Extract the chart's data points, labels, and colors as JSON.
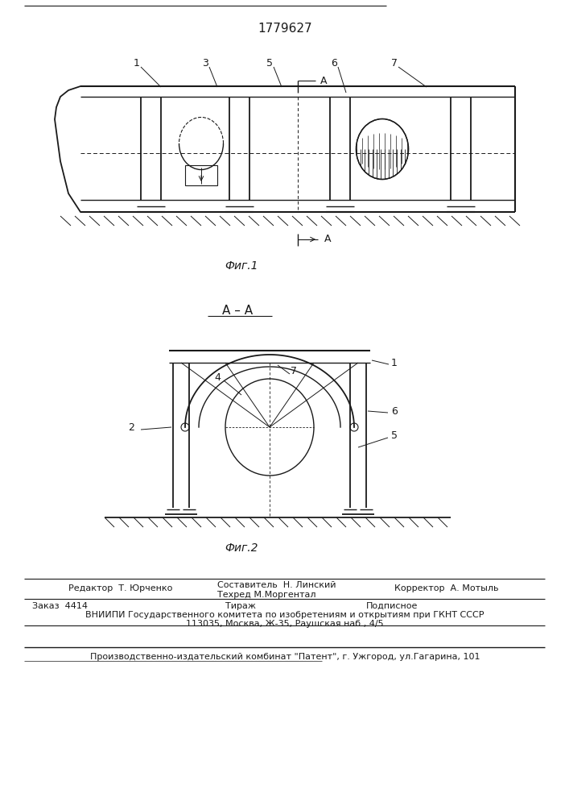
{
  "patent_number": "1779627",
  "fig1_caption": "Фиг.1",
  "fig2_caption": "Фиг.2",
  "section_label": "A – A",
  "editor_line": "Редактор  Т. Юрченко",
  "composer_line": "Составитель  Н. Линский",
  "techred_line": "Техред М.Моргентал",
  "corrector_line": "Корректор  А. Мотыль",
  "order_line": "Заказ  4414",
  "tirazh_line": "Тираж",
  "podpisnoe_line": "Подписное",
  "vniip_line": "ВНИИПИ Государственного комитета по изобретениям и открытиям при ГКНТ СССР",
  "address_line": "113035, Москва, Ж-35, Раушская наб., 4/5",
  "production_line": "Производственно-издательский комбинат \"Патент\", г. Ужгород, ул.Гагарина, 101",
  "bg_color": "#ffffff",
  "line_color": "#1a1a1a"
}
